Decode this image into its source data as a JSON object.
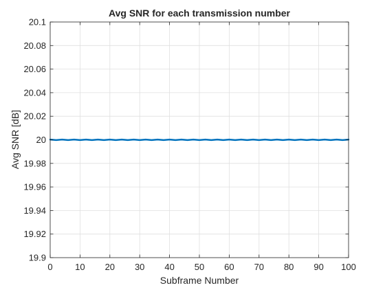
{
  "chart_data": {
    "type": "line",
    "title": "Avg SNR for each transmission number",
    "xlabel": "Subframe Number",
    "ylabel": "Avg SNR [dB]",
    "xlim": [
      0,
      100
    ],
    "ylim": [
      19.9,
      20.1
    ],
    "xticks": [
      0,
      10,
      20,
      30,
      40,
      50,
      60,
      70,
      80,
      90,
      100
    ],
    "yticks": [
      19.9,
      19.92,
      19.94,
      19.96,
      19.98,
      20,
      20.02,
      20.04,
      20.06,
      20.08,
      20.1
    ],
    "xtick_labels": [
      "0",
      "10",
      "20",
      "30",
      "40",
      "50",
      "60",
      "70",
      "80",
      "90",
      "100"
    ],
    "ytick_labels": [
      "19.9",
      "19.92",
      "19.94",
      "19.96",
      "19.98",
      "20",
      "20.02",
      "20.04",
      "20.06",
      "20.08",
      "20.1"
    ],
    "grid": true,
    "series": [
      {
        "color": "#0072BD",
        "x": [
          0,
          1,
          2,
          3,
          4,
          5,
          6,
          7,
          8,
          9,
          10,
          11,
          12,
          13,
          14,
          15,
          16,
          17,
          18,
          19,
          20,
          21,
          22,
          23,
          24,
          25,
          26,
          27,
          28,
          29,
          30,
          31,
          32,
          33,
          34,
          35,
          36,
          37,
          38,
          39,
          40,
          41,
          42,
          43,
          44,
          45,
          46,
          47,
          48,
          49,
          50,
          51,
          52,
          53,
          54,
          55,
          56,
          57,
          58,
          59,
          60,
          61,
          62,
          63,
          64,
          65,
          66,
          67,
          68,
          69,
          70,
          71,
          72,
          73,
          74,
          75,
          76,
          77,
          78,
          79,
          80,
          81,
          82,
          83,
          84,
          85,
          86,
          87,
          88,
          89,
          90,
          91,
          92,
          93,
          94,
          95,
          96,
          97,
          98,
          99,
          100
        ],
        "y": [
          20.0002,
          20.0,
          19.9998,
          20.0,
          20.0002,
          20.0,
          19.9998,
          20.0,
          20.0002,
          20.0,
          19.9998,
          20.0,
          20.0002,
          20.0,
          19.9998,
          20.0,
          20.0002,
          20.0,
          19.9998,
          20.0,
          20.0002,
          20.0,
          19.9998,
          20.0,
          20.0002,
          20.0,
          19.9998,
          20.0,
          20.0002,
          20.0,
          19.9998,
          20.0,
          20.0002,
          20.0,
          19.9998,
          20.0,
          20.0002,
          20.0,
          19.9998,
          20.0,
          20.0002,
          20.0,
          19.9998,
          20.0,
          20.0002,
          20.0,
          19.9998,
          20.0,
          20.0002,
          20.0,
          19.9998,
          20.0,
          20.0002,
          20.0,
          19.9998,
          20.0,
          20.0002,
          20.0,
          19.9998,
          20.0,
          20.0002,
          20.0,
          19.9998,
          20.0,
          20.0002,
          20.0,
          19.9998,
          20.0,
          20.0002,
          20.0,
          19.9998,
          20.0,
          20.0002,
          20.0,
          19.9998,
          20.0,
          20.0002,
          20.0,
          19.9998,
          20.0,
          20.0002,
          20.0,
          19.9998,
          20.0,
          20.0002,
          20.0,
          19.9998,
          20.0,
          20.0002,
          20.0,
          19.9998,
          20.0,
          20.0002,
          20.0,
          19.9998,
          20.0,
          20.0002,
          20.0,
          19.9998,
          20.0,
          20.0002
        ]
      }
    ]
  }
}
